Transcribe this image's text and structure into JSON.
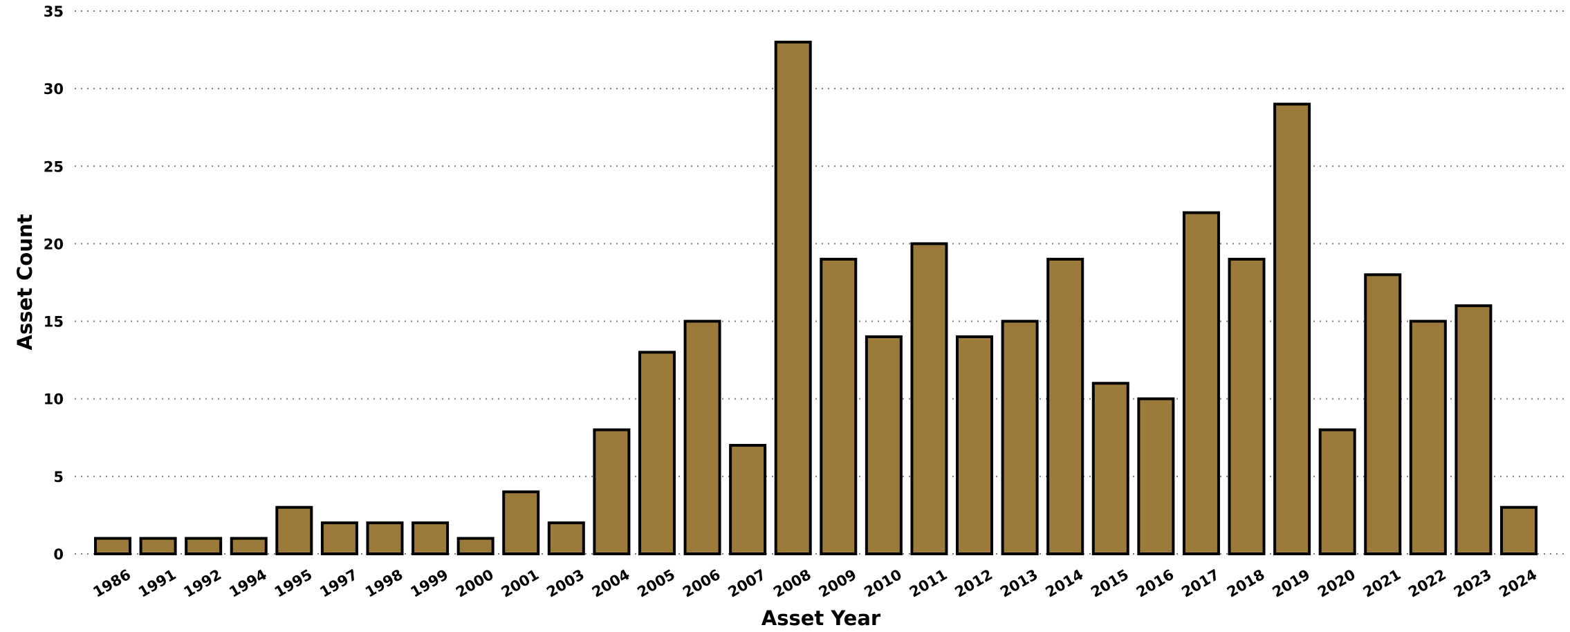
{
  "chart_data": {
    "type": "bar",
    "xlabel": "Asset Year",
    "ylabel": "Asset Count",
    "categories": [
      "1986",
      "1991",
      "1992",
      "1994",
      "1995",
      "1997",
      "1998",
      "1999",
      "2000",
      "2001",
      "2003",
      "2004",
      "2005",
      "2006",
      "2007",
      "2008",
      "2009",
      "2010",
      "2011",
      "2012",
      "2013",
      "2014",
      "2015",
      "2016",
      "2017",
      "2018",
      "2019",
      "2020",
      "2021",
      "2022",
      "2023",
      "2024"
    ],
    "values": [
      1,
      1,
      1,
      1,
      3,
      2,
      2,
      2,
      1,
      4,
      2,
      8,
      13,
      15,
      7,
      33,
      19,
      14,
      20,
      14,
      15,
      19,
      11,
      10,
      22,
      19,
      29,
      8,
      18,
      15,
      16,
      3
    ],
    "ylim": [
      0,
      35
    ],
    "yticks": [
      0,
      5,
      10,
      15,
      20,
      25,
      30,
      35
    ],
    "grid": true,
    "bar_color": "#9c7b3a",
    "bar_outline_color": "#000000",
    "legend": "none"
  }
}
